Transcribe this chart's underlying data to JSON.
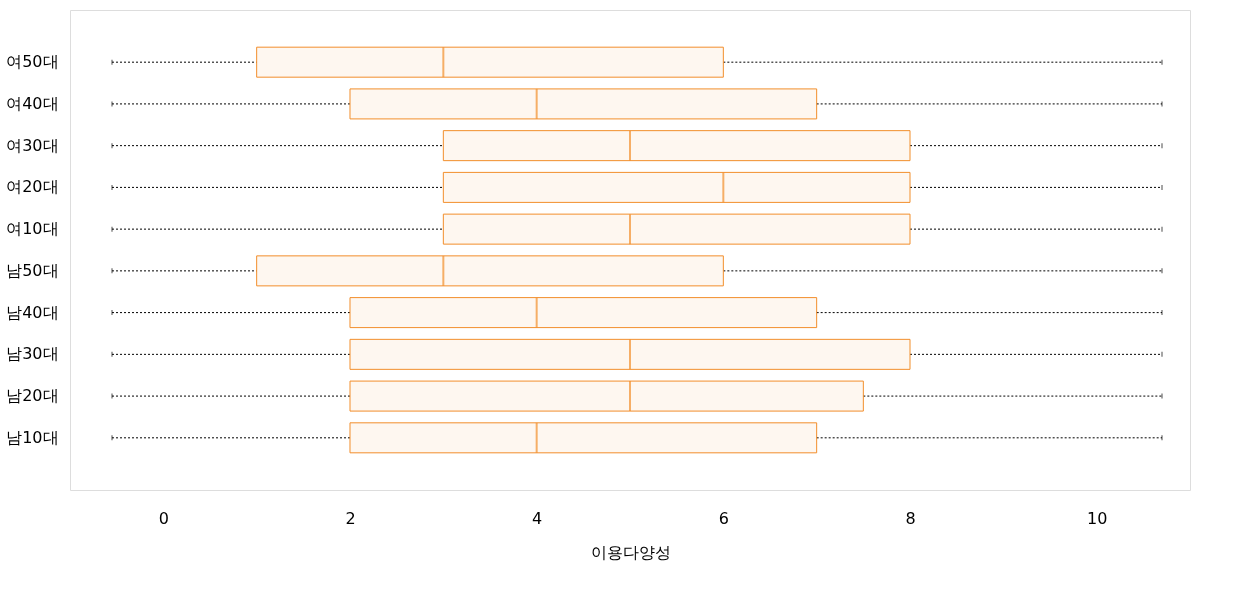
{
  "chart_data": {
    "type": "box",
    "orientation": "horizontal",
    "xlabel": "이용다양성",
    "categories": [
      "여50대",
      "여40대",
      "여30대",
      "여20대",
      "여10대",
      "남50대",
      "남40대",
      "남30대",
      "남20대",
      "남10대"
    ],
    "series": [
      {
        "color": "#f28e2b",
        "boxes": [
          {
            "low": -0.55,
            "q1": 1,
            "median": 3,
            "q3": 6,
            "high": 10.7
          },
          {
            "low": -0.55,
            "q1": 2,
            "median": 4,
            "q3": 7,
            "high": 10.7
          },
          {
            "low": -0.55,
            "q1": 3,
            "median": 5,
            "q3": 8,
            "high": 10.7
          },
          {
            "low": -0.55,
            "q1": 3,
            "median": 6,
            "q3": 8,
            "high": 10.7
          },
          {
            "low": -0.55,
            "q1": 3,
            "median": 5,
            "q3": 8,
            "high": 10.7
          },
          {
            "low": -0.55,
            "q1": 1,
            "median": 3,
            "q3": 6,
            "high": 10.7
          },
          {
            "low": -0.55,
            "q1": 2,
            "median": 4,
            "q3": 7,
            "high": 10.7
          },
          {
            "low": -0.55,
            "q1": 2,
            "median": 5,
            "q3": 8,
            "high": 10.7
          },
          {
            "low": -0.55,
            "q1": 2,
            "median": 5,
            "q3": 7.5,
            "high": 10.7
          },
          {
            "low": -0.55,
            "q1": 2,
            "median": 4,
            "q3": 7,
            "high": 10.7
          }
        ]
      }
    ],
    "xlim": [
      -1,
      11
    ],
    "xticks": [
      0,
      2,
      4,
      6,
      8,
      10
    ],
    "line_style": "dotted",
    "grid": false
  }
}
